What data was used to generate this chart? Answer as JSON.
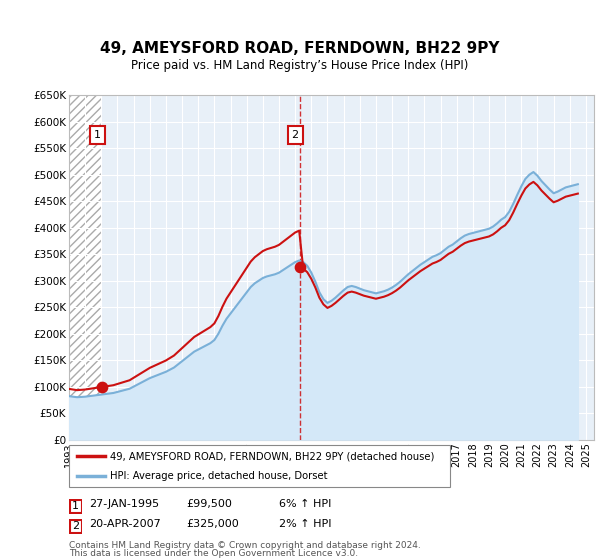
{
  "title": "49, AMEYSFORD ROAD, FERNDOWN, BH22 9PY",
  "subtitle": "Price paid vs. HM Land Registry’s House Price Index (HPI)",
  "ylim": [
    0,
    650000
  ],
  "yticks": [
    0,
    50000,
    100000,
    150000,
    200000,
    250000,
    300000,
    350000,
    400000,
    450000,
    500000,
    550000,
    600000,
    650000
  ],
  "ytick_labels": [
    "£0",
    "£50K",
    "£100K",
    "£150K",
    "£200K",
    "£250K",
    "£300K",
    "£350K",
    "£400K",
    "£450K",
    "£500K",
    "£550K",
    "£600K",
    "£650K"
  ],
  "xlim_start": 1993.0,
  "xlim_end": 2025.5,
  "transactions": [
    {
      "date_num": 1995.07,
      "price": 99500,
      "label": "1",
      "date_str": "27-JAN-1995",
      "hpi_change": "6% ↑ HPI"
    },
    {
      "date_num": 2007.3,
      "price": 325000,
      "label": "2",
      "date_str": "20-APR-2007",
      "hpi_change": "2% ↑ HPI"
    }
  ],
  "hpi_line_color": "#7ab0d8",
  "price_line_color": "#cc1111",
  "fill_color": "#d4e8f8",
  "vline_color": "#cc1111",
  "legend_line1": "49, AMEYSFORD ROAD, FERNDOWN, BH22 9PY (detached house)",
  "legend_line2": "HPI: Average price, detached house, Dorset",
  "footnote1": "Contains HM Land Registry data © Crown copyright and database right 2024.",
  "footnote2": "This data is licensed under the Open Government Licence v3.0.",
  "hpi_data_x": [
    1993.0,
    1993.25,
    1993.5,
    1993.75,
    1994.0,
    1994.25,
    1994.5,
    1994.75,
    1995.0,
    1995.25,
    1995.5,
    1995.75,
    1996.0,
    1996.25,
    1996.5,
    1996.75,
    1997.0,
    1997.25,
    1997.5,
    1997.75,
    1998.0,
    1998.25,
    1998.5,
    1998.75,
    1999.0,
    1999.25,
    1999.5,
    1999.75,
    2000.0,
    2000.25,
    2000.5,
    2000.75,
    2001.0,
    2001.25,
    2001.5,
    2001.75,
    2002.0,
    2002.25,
    2002.5,
    2002.75,
    2003.0,
    2003.25,
    2003.5,
    2003.75,
    2004.0,
    2004.25,
    2004.5,
    2004.75,
    2005.0,
    2005.25,
    2005.5,
    2005.75,
    2006.0,
    2006.25,
    2006.5,
    2006.75,
    2007.0,
    2007.25,
    2007.5,
    2007.75,
    2008.0,
    2008.25,
    2008.5,
    2008.75,
    2009.0,
    2009.25,
    2009.5,
    2009.75,
    2010.0,
    2010.25,
    2010.5,
    2010.75,
    2011.0,
    2011.25,
    2011.5,
    2011.75,
    2012.0,
    2012.25,
    2012.5,
    2012.75,
    2013.0,
    2013.25,
    2013.5,
    2013.75,
    2014.0,
    2014.25,
    2014.5,
    2014.75,
    2015.0,
    2015.25,
    2015.5,
    2015.75,
    2016.0,
    2016.25,
    2016.5,
    2016.75,
    2017.0,
    2017.25,
    2017.5,
    2017.75,
    2018.0,
    2018.25,
    2018.5,
    2018.75,
    2019.0,
    2019.25,
    2019.5,
    2019.75,
    2020.0,
    2020.25,
    2020.5,
    2020.75,
    2021.0,
    2021.25,
    2021.5,
    2021.75,
    2022.0,
    2022.25,
    2022.5,
    2022.75,
    2023.0,
    2023.25,
    2023.5,
    2023.75,
    2024.0,
    2024.25,
    2024.5
  ],
  "hpi_data_y": [
    82000,
    81000,
    80000,
    80500,
    81000,
    82000,
    83000,
    84000,
    85000,
    86000,
    87000,
    88000,
    90000,
    92000,
    94000,
    96000,
    100000,
    104000,
    108000,
    112000,
    116000,
    119000,
    122000,
    125000,
    128000,
    132000,
    136000,
    142000,
    148000,
    154000,
    160000,
    166000,
    170000,
    174000,
    178000,
    182000,
    188000,
    200000,
    215000,
    228000,
    238000,
    248000,
    258000,
    268000,
    278000,
    288000,
    295000,
    300000,
    305000,
    308000,
    310000,
    312000,
    315000,
    320000,
    325000,
    330000,
    335000,
    338000,
    335000,
    328000,
    315000,
    298000,
    278000,
    265000,
    258000,
    262000,
    268000,
    275000,
    282000,
    288000,
    290000,
    288000,
    285000,
    282000,
    280000,
    278000,
    276000,
    278000,
    280000,
    283000,
    287000,
    292000,
    298000,
    305000,
    312000,
    318000,
    324000,
    330000,
    335000,
    340000,
    345000,
    348000,
    352000,
    358000,
    364000,
    368000,
    374000,
    380000,
    385000,
    388000,
    390000,
    392000,
    394000,
    396000,
    398000,
    402000,
    408000,
    415000,
    420000,
    430000,
    445000,
    462000,
    478000,
    492000,
    500000,
    505000,
    498000,
    488000,
    480000,
    472000,
    465000,
    468000,
    472000,
    476000,
    478000,
    480000,
    482000
  ]
}
